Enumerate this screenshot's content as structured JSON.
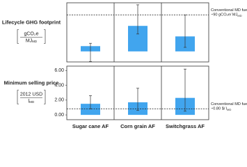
{
  "chart_data": [
    {
      "type": "bar",
      "ylabel": "Lifecycle GHG footprint",
      "units_top": "gCO₂e",
      "units_bottom": "MJ",
      "units_bottom_sub": "MD",
      "values": [
        13,
        63,
        37
      ],
      "error_range": [
        [
          -25,
          20
        ],
        [
          43,
          115
        ],
        [
          10,
          90
        ]
      ],
      "color": "#41a5ee",
      "ylim": [
        -26,
        120
      ],
      "reference": {
        "value": 90,
        "line1": "Conventional MD fuel",
        "line2": "~90 gCO₂e/ MJ",
        "line2_sub": "MD"
      }
    },
    {
      "type": "bar",
      "ylabel": "Minimum selling price",
      "units_top": "2012 USD",
      "units_bottom": "l",
      "units_bottom_sub": "MD",
      "categories": [
        "Sugar cane AF",
        "Corn grain AF",
        "Switchgrass AF"
      ],
      "values": [
        1.5,
        1.7,
        2.3
      ],
      "error_range": [
        [
          0.8,
          2.6
        ],
        [
          0.6,
          3.6
        ],
        [
          0.5,
          6.2
        ]
      ],
      "color": "#41a5ee",
      "ylim": [
        -0.65,
        6.6
      ],
      "yticks": [
        {
          "value": 0,
          "label": "0.00"
        },
        {
          "value": 2,
          "label": "2.00"
        },
        {
          "value": 4,
          "label": "4.00"
        },
        {
          "value": 6,
          "label": "6.00"
        }
      ],
      "reference": {
        "value": 0.8,
        "line1": "Conventional MD fuel",
        "line2": "~0.80 $/ l",
        "line2_sub": "MD"
      }
    }
  ]
}
